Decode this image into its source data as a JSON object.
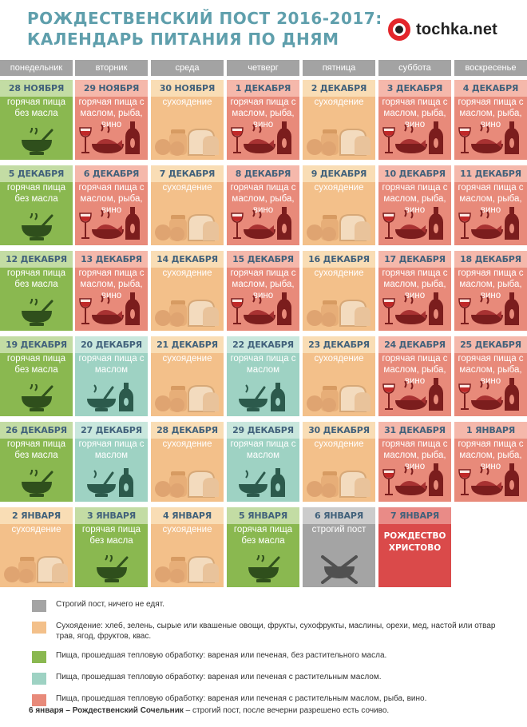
{
  "header": {
    "title_line1": "РОЖДЕСТВЕНСКИЙ ПОСТ 2016-2017:",
    "title_line2": "КАЛЕНДАРЬ ПИТАНИЯ ПО ДНЯМ",
    "logo_text": "tochka.net"
  },
  "weekdays": [
    "понедельник",
    "вторник",
    "среда",
    "четверг",
    "пятница",
    "суббота",
    "воскресенье"
  ],
  "labels": {
    "red": "горячая пища с маслом, рыба, вино",
    "orange": "сухоядение",
    "green": "горячая пища без масла",
    "teal": "горячая пища с маслом",
    "gray": "строгий пост",
    "holiday": "РОЖДЕСТВО ХРИСТОВО"
  },
  "colors": {
    "red": "#e88a7a",
    "orange": "#f3c08a",
    "green": "#8ab850",
    "teal": "#9ed2c3",
    "gray": "#a4a4a4",
    "holiday": "#da4a4a",
    "title": "#5f9fac",
    "date_text": "#41617b"
  },
  "weeks": [
    [
      {
        "date": "28 НОЯБРЯ",
        "type": "green",
        "icon": "bowl-icon"
      },
      {
        "date": "29 НОЯБРЯ",
        "type": "red",
        "icon": "fish-wine-icon"
      },
      {
        "date": "30 НОЯБРЯ",
        "type": "orange",
        "icon": "bread-fruit-icon"
      },
      {
        "date": "1 ДЕКАБРЯ",
        "type": "red",
        "icon": "fish-wine-icon"
      },
      {
        "date": "2 ДЕКАБРЯ",
        "type": "orange",
        "icon": "bread-fruit-icon"
      },
      {
        "date": "3 ДЕКАБРЯ",
        "type": "red",
        "icon": "fish-wine-icon"
      },
      {
        "date": "4 ДЕКАБРЯ",
        "type": "red",
        "icon": "fish-wine-icon"
      }
    ],
    [
      {
        "date": "5 ДЕКАБРЯ",
        "type": "green",
        "icon": "bowl-icon"
      },
      {
        "date": "6 ДЕКАБРЯ",
        "type": "red",
        "icon": "fish-wine-icon"
      },
      {
        "date": "7 ДЕКАБРЯ",
        "type": "orange",
        "icon": "bread-fruit-icon"
      },
      {
        "date": "8 ДЕКАБРЯ",
        "type": "red",
        "icon": "fish-wine-icon"
      },
      {
        "date": "9 ДЕКАБРЯ",
        "type": "orange",
        "icon": "bread-fruit-icon"
      },
      {
        "date": "10 ДЕКАБРЯ",
        "type": "red",
        "icon": "fish-wine-icon"
      },
      {
        "date": "11 ДЕКАБРЯ",
        "type": "red",
        "icon": "fish-wine-icon"
      }
    ],
    [
      {
        "date": "12 ДЕКАБРЯ",
        "type": "green",
        "icon": "bowl-icon"
      },
      {
        "date": "13 ДЕКАБРЯ",
        "type": "red",
        "icon": "fish-wine-icon"
      },
      {
        "date": "14 ДЕКАБРЯ",
        "type": "orange",
        "icon": "bread-fruit-icon"
      },
      {
        "date": "15 ДЕКАБРЯ",
        "type": "red",
        "icon": "fish-wine-icon"
      },
      {
        "date": "16 ДЕКАБРЯ",
        "type": "orange",
        "icon": "bread-fruit-icon"
      },
      {
        "date": "17 ДЕКАБРЯ",
        "type": "red",
        "icon": "fish-wine-icon"
      },
      {
        "date": "18 ДЕКАБРЯ",
        "type": "red",
        "icon": "fish-wine-icon"
      }
    ],
    [
      {
        "date": "19 ДЕКАБРЯ",
        "type": "green",
        "icon": "bowl-icon"
      },
      {
        "date": "20 ДЕКАБРЯ",
        "type": "teal",
        "icon": "bowl-oil-icon"
      },
      {
        "date": "21 ДЕКАБРЯ",
        "type": "orange",
        "icon": "bread-fruit-icon"
      },
      {
        "date": "22 ДЕКАБРЯ",
        "type": "teal",
        "icon": "bowl-oil-icon"
      },
      {
        "date": "23 ДЕКАБРЯ",
        "type": "orange",
        "icon": "bread-fruit-icon"
      },
      {
        "date": "24 ДЕКАБРЯ",
        "type": "red",
        "icon": "fish-wine-icon"
      },
      {
        "date": "25 ДЕКАБРЯ",
        "type": "red",
        "icon": "fish-wine-icon"
      }
    ],
    [
      {
        "date": "26 ДЕКАБРЯ",
        "type": "green",
        "icon": "bowl-icon"
      },
      {
        "date": "27 ДЕКАБРЯ",
        "type": "teal",
        "icon": "bowl-oil-icon"
      },
      {
        "date": "28 ДЕКАБРЯ",
        "type": "orange",
        "icon": "bread-fruit-icon"
      },
      {
        "date": "29 ДЕКАБРЯ",
        "type": "teal",
        "icon": "bowl-oil-icon"
      },
      {
        "date": "30 ДЕКАБРЯ",
        "type": "orange",
        "icon": "bread-fruit-icon"
      },
      {
        "date": "31 ДЕКАБРЯ",
        "type": "red",
        "icon": "fish-wine-icon"
      },
      {
        "date": "1 ЯНВАРЯ",
        "type": "red",
        "icon": "fish-wine-icon"
      }
    ],
    [
      {
        "date": "2 ЯНВАРЯ",
        "type": "orange",
        "icon": "bread-fruit-icon"
      },
      {
        "date": "3 ЯНВАРЯ",
        "type": "green",
        "icon": "bowl-icon"
      },
      {
        "date": "4 ЯНВАРЯ",
        "type": "orange",
        "icon": "bread-fruit-icon"
      },
      {
        "date": "5 ЯНВАРЯ",
        "type": "green",
        "icon": "bowl-icon"
      },
      {
        "date": "6 ЯНВАРЯ",
        "type": "gray",
        "icon": "crossed-bowl-icon"
      },
      {
        "date": "7 ЯНВАРЯ",
        "type": "holiday",
        "icon": ""
      }
    ]
  ],
  "legend": [
    {
      "type": "gray",
      "text": "Строгий пост, ничего не едят."
    },
    {
      "type": "orange",
      "text": "Сухоядение: хлеб, зелень, сырые или квашеные овощи, фрукты, сухофрукты, маслины, орехи, мед, настой или отвар трав, ягод, фруктов, квас."
    },
    {
      "type": "green",
      "text": "Пища, прошедшая тепловую обработку: вареная или печеная, без растительного масла."
    },
    {
      "type": "teal",
      "text": "Пища, прошедшая тепловую обработку: вареная или печеная с растительным маслом."
    },
    {
      "type": "red",
      "text": "Пища, прошедшая тепловую обработку: вареная или печеная с растительным маслом, рыба, вино."
    }
  ],
  "footnote": {
    "bold": "6 января – Рождественский Сочельник",
    "rest": " – строгий пост, после вечерни разрешено есть сочиво."
  }
}
